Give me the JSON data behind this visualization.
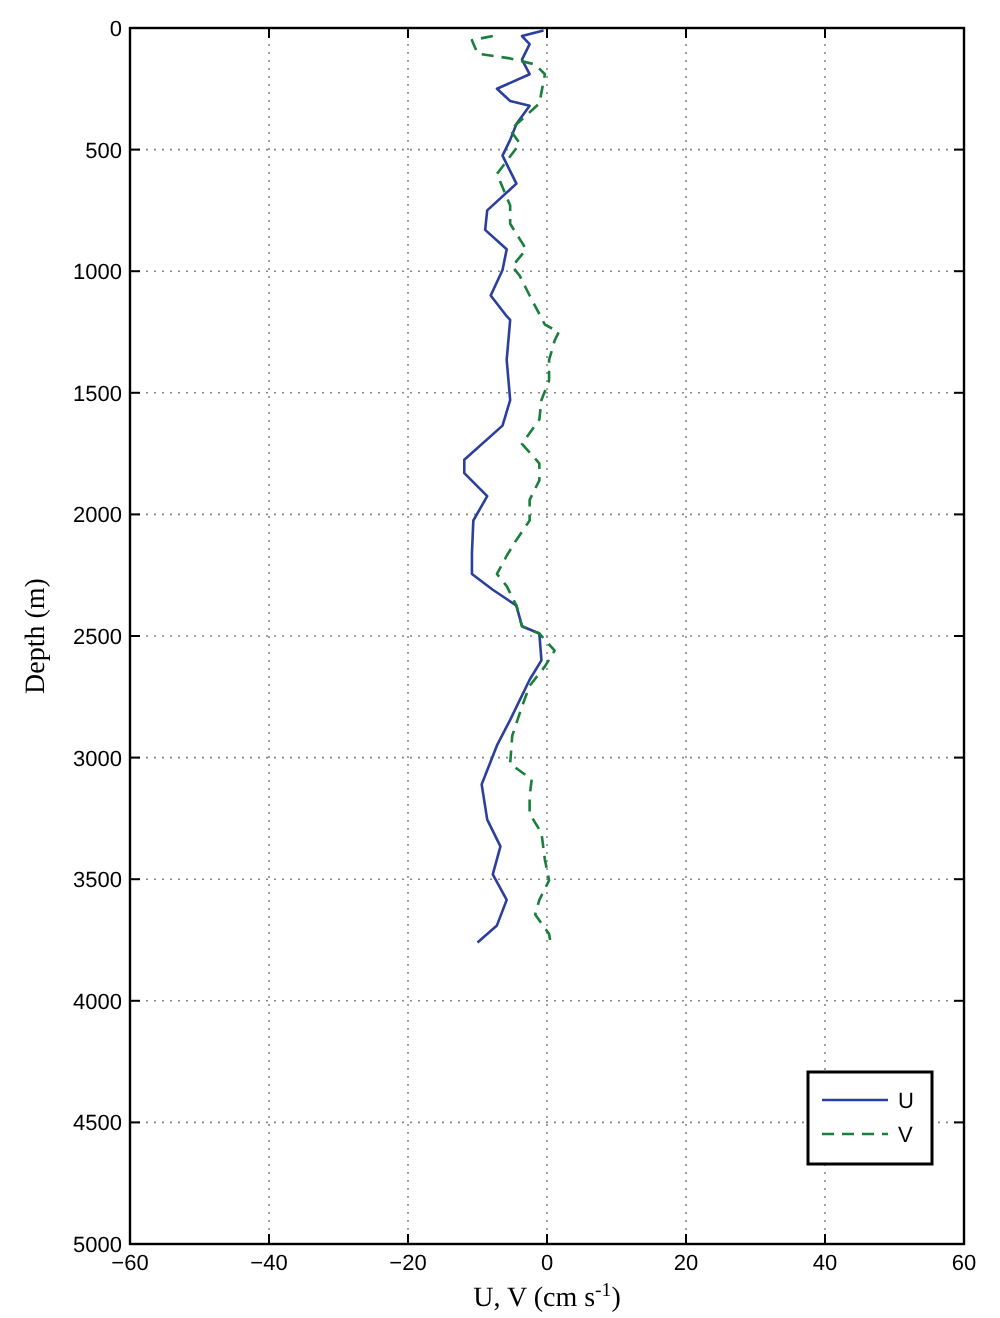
{
  "chart_data": {
    "type": "line",
    "xlabel": "U, V (cm s$^{-1}$)",
    "ylabel": "Depth (m)",
    "xlim": [
      -60,
      60
    ],
    "xticks": [
      -60,
      -40,
      -20,
      0,
      20,
      40,
      60
    ],
    "ylim": [
      5000,
      0
    ],
    "yticks": [
      0,
      500,
      1000,
      1500,
      2000,
      2500,
      3000,
      3500,
      4000,
      4500,
      5000
    ],
    "grid": true,
    "legend": "bottom right",
    "series": [
      {
        "name": "U",
        "color": "#2b3f9e",
        "line_style": "solid",
        "x": [
          -0.5,
          -3.6,
          -2.5,
          -3.6,
          -2.5,
          -7.2,
          -5.3,
          -2.5,
          -4.4,
          -5.3,
          -6.4,
          -4.4,
          -8.6,
          -8.9,
          -5.8,
          -6.4,
          -8.1,
          -5.8,
          -5.3,
          -5.8,
          -5.3,
          -6.4,
          -11.9,
          -11.9,
          -8.6,
          -10.6,
          -10.8,
          -10.8,
          -7.8,
          -4.4,
          -3.6,
          -1.1,
          -0.8,
          -2.5,
          -5.3,
          -7.2,
          -9.4,
          -8.6,
          -6.7,
          -7.8,
          -5.8,
          -7.2,
          -10
        ],
        "values": [
          10,
          33,
          66,
          130,
          190,
          250,
          300,
          320,
          395,
          460,
          525,
          640,
          750,
          830,
          910,
          995,
          1100,
          1185,
          1200,
          1365,
          1530,
          1635,
          1775,
          1830,
          1925,
          2025,
          2160,
          2245,
          2310,
          2375,
          2460,
          2490,
          2600,
          2680,
          2845,
          2950,
          3110,
          3255,
          3365,
          3480,
          3585,
          3690,
          3760
        ]
      },
      {
        "name": "V",
        "color": "#1a7f3a",
        "line_style": "dashed",
        "x": [
          -7.8,
          -10.8,
          -10,
          -5.3,
          -1.7,
          -0.3,
          -1.1,
          -5.3,
          -3.9,
          -7.2,
          -5.3,
          -5.3,
          -3,
          -5,
          -3.9,
          -2.5,
          -0.3,
          1.7,
          1.1,
          0.3,
          0.3,
          -0.8,
          -1.1,
          -3.6,
          -1.1,
          -1.1,
          -2.5,
          -2.5,
          -4.4,
          -5.8,
          -7.2,
          -5.8,
          -4.4,
          -3.6,
          -1.1,
          1.1,
          -0.3,
          -2.5,
          -3.6,
          -5,
          -5.3,
          -2.2,
          -2.5,
          -2.5,
          -0.8,
          -0.3,
          0.3,
          -1.1,
          -1.7,
          0.3,
          0.5
        ],
        "values": [
          33,
          50,
          105,
          125,
          150,
          190,
          310,
          420,
          475,
          600,
          730,
          805,
          910,
          980,
          1020,
          1100,
          1220,
          1250,
          1285,
          1365,
          1450,
          1530,
          1610,
          1710,
          1790,
          1860,
          1940,
          2025,
          2105,
          2170,
          2245,
          2295,
          2375,
          2460,
          2490,
          2560,
          2625,
          2705,
          2790,
          2910,
          3025,
          3090,
          3160,
          3230,
          3310,
          3420,
          3505,
          3585,
          3645,
          3725,
          3760
        ]
      }
    ]
  }
}
